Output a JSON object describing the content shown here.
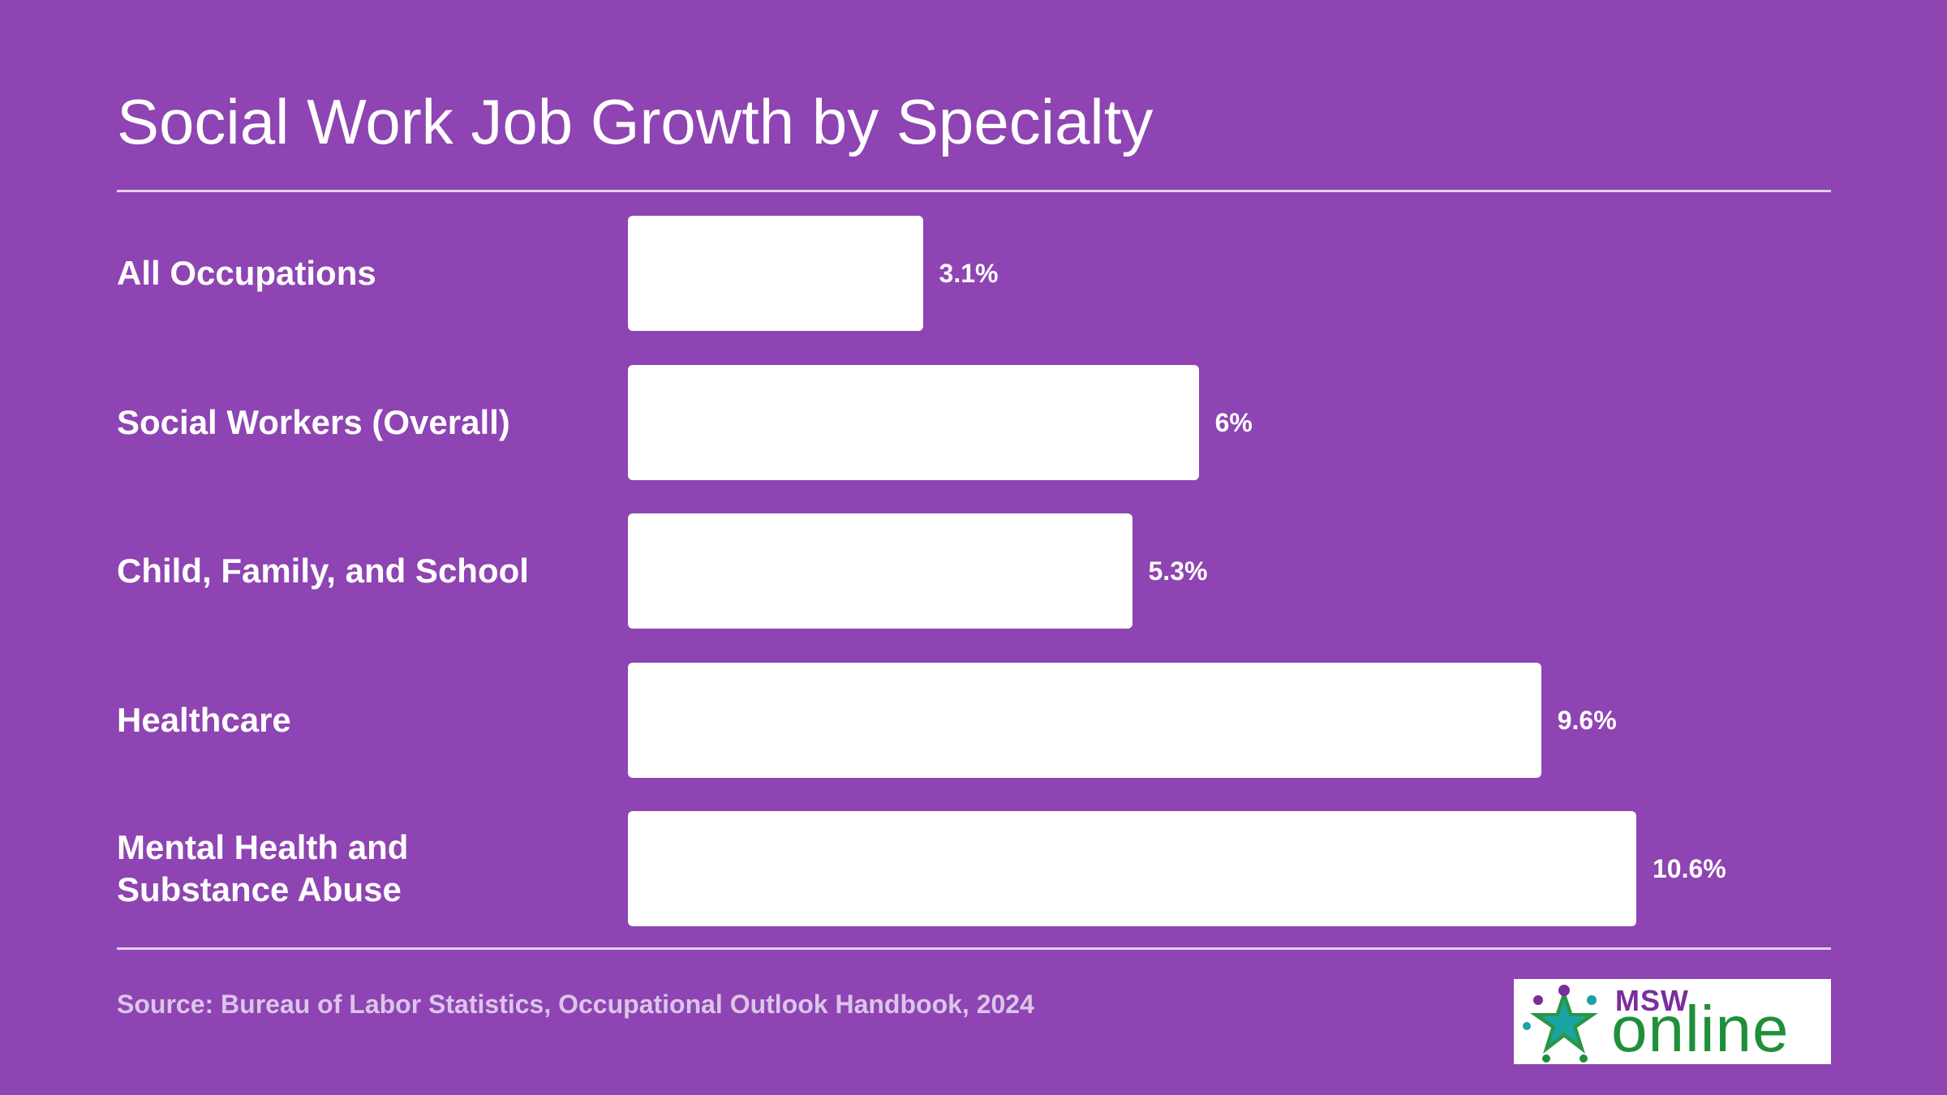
{
  "title": "Social Work Job Growth by Specialty",
  "source": "Source: Bureau of Labor Statistics, Occupational Outlook Handbook, 2024",
  "logo": {
    "msw": "MSW",
    "online": "online"
  },
  "colors": {
    "background": "#8e44b2",
    "bar": "#ffffff",
    "text": "#ffffff",
    "source_text": "#dcc4ea",
    "logo_purple": "#7a2d9e",
    "logo_green": "#1f8f3a",
    "logo_teal": "#1aa3a3"
  },
  "chart_data": {
    "type": "bar",
    "orientation": "horizontal",
    "title": "Social Work Job Growth by Specialty",
    "categories": [
      "All Occupations",
      "Social Workers (Overall)",
      "Child, Family, and School",
      "Healthcare",
      "Mental Health and Substance Abuse"
    ],
    "values": [
      3.1,
      6,
      5.3,
      9.6,
      10.6
    ],
    "value_labels": [
      "3.1%",
      "6%",
      "5.3%",
      "9.6%",
      "10.6%"
    ],
    "unit": "%",
    "xlim": [
      0,
      10.6
    ],
    "grid": false,
    "legend": "none"
  }
}
